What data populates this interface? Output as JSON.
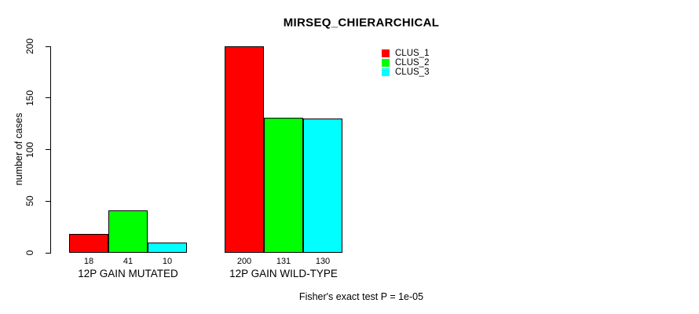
{
  "title": "MIRSEQ_CHIERARCHICAL",
  "ylabel": "number of cases",
  "footer": "Fisher's exact test P = 1e-05",
  "colors": {
    "clus_1": "#ff0000",
    "clus_2": "#00ff00",
    "clus_3": "#00ffff",
    "axis": "#000000",
    "background": "#ffffff"
  },
  "legend": {
    "items": [
      {
        "label": "CLUS_1",
        "color": "#ff0000"
      },
      {
        "label": "CLUS_2",
        "color": "#00ff00"
      },
      {
        "label": "CLUS_3",
        "color": "#00ffff"
      }
    ]
  },
  "chart_data": {
    "type": "bar",
    "title": "MIRSEQ_CHIERARCHICAL",
    "xlabel": "",
    "ylabel": "number of cases",
    "categories": [
      "12P GAIN MUTATED",
      "12P GAIN WILD-TYPE"
    ],
    "series": [
      {
        "name": "CLUS_1",
        "color": "#ff0000",
        "values": [
          18,
          200
        ]
      },
      {
        "name": "CLUS_2",
        "color": "#00ff00",
        "values": [
          41,
          131
        ]
      },
      {
        "name": "CLUS_3",
        "color": "#00ffff",
        "values": [
          10,
          130
        ]
      }
    ],
    "bar_value_labels": [
      [
        "18",
        "41",
        "10"
      ],
      [
        "200",
        "131",
        "130"
      ]
    ],
    "yticks": [
      "0",
      "50",
      "100",
      "150",
      "200"
    ],
    "ylim": [
      0,
      200
    ],
    "grid": false,
    "legend_position": "top-right",
    "annotation": "Fisher's exact test P = 1e-05"
  }
}
